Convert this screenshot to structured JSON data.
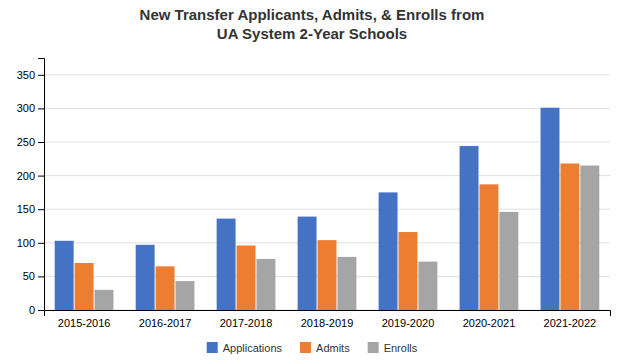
{
  "chart_data": {
    "type": "bar",
    "title": "New Transfer Applicants, Admits, & Enrolls from\nUA System 2-Year Schools",
    "categories": [
      "2015-2016",
      "2016-2017",
      "2017-2018",
      "2018-2019",
      "2019-2020",
      "2020-2021",
      "2021-2022"
    ],
    "series": [
      {
        "name": "Applications",
        "color": "#4472C4",
        "values": [
          103,
          97,
          136,
          139,
          175,
          244,
          301
        ]
      },
      {
        "name": "Admits",
        "color": "#ED7D31",
        "values": [
          70,
          65,
          96,
          104,
          116,
          187,
          218
        ]
      },
      {
        "name": "Enrolls",
        "color": "#A5A5A5",
        "values": [
          30,
          43,
          76,
          79,
          72,
          146,
          215
        ]
      }
    ],
    "ylim": [
      0,
      375
    ],
    "yticks": [
      0,
      50,
      100,
      150,
      200,
      250,
      300,
      350
    ],
    "grid": true,
    "legend": "bottom"
  }
}
